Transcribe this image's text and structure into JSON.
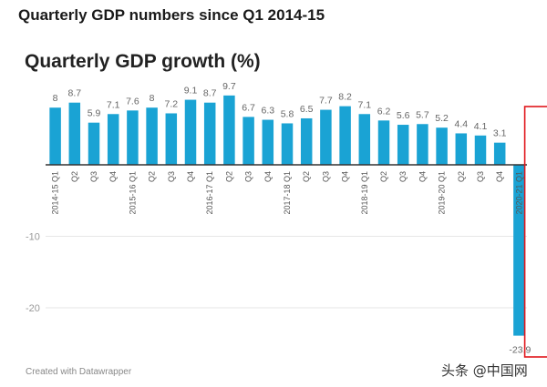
{
  "header": {
    "title": "Quarterly GDP numbers since Q1 2014-15"
  },
  "footer": {
    "credit": "Created with Datawrapper",
    "watermark": "头条 @中国网"
  },
  "colors": {
    "bar": "#1aa3d4",
    "highlight_bar": "#e0161b",
    "highlight_box": "#e0161b",
    "axis": "#333333",
    "grid": "#e6e6e6",
    "label": "#666666"
  },
  "chart_data": {
    "type": "bar",
    "title": "Quarterly GDP growth (%)",
    "xlabel": "",
    "ylabel": "",
    "ylim": [
      -25,
      10
    ],
    "yticks": [
      -10,
      -20
    ],
    "grid": true,
    "highlight_index": 25,
    "categories": [
      "2014-15 Q1",
      "Q2",
      "Q3",
      "Q4",
      "2015-16 Q1",
      "Q2",
      "Q3",
      "Q4",
      "2016-17 Q1",
      "Q2",
      "Q3",
      "Q4",
      "2017-18 Q1",
      "Q2",
      "Q3",
      "Q4",
      "2018-19 Q1",
      "Q2",
      "Q3",
      "Q4",
      "2019-20 Q1",
      "Q2",
      "Q3",
      "Q4",
      "2020-21 Q1"
    ],
    "values": [
      8,
      8.7,
      5.9,
      7.1,
      7.6,
      8,
      7.2,
      9.1,
      8.7,
      9.7,
      6.7,
      6.3,
      5.8,
      6.5,
      7.7,
      8.2,
      7.1,
      6.2,
      5.6,
      5.7,
      5.2,
      4.4,
      4.1,
      3.1,
      -23.9
    ],
    "value_labels": [
      "8",
      "8.7",
      "5.9",
      "7.1",
      "7.6",
      "8",
      "7.2",
      "9.1",
      "8.7",
      "9.7",
      "6.7",
      "6.3",
      "5.8",
      "6.5",
      "7.7",
      "8.2",
      "7.1",
      "6.2",
      "5.6",
      "5.7",
      "5.2",
      "4.4",
      "4.1",
      "3.1",
      "-23.9"
    ]
  }
}
